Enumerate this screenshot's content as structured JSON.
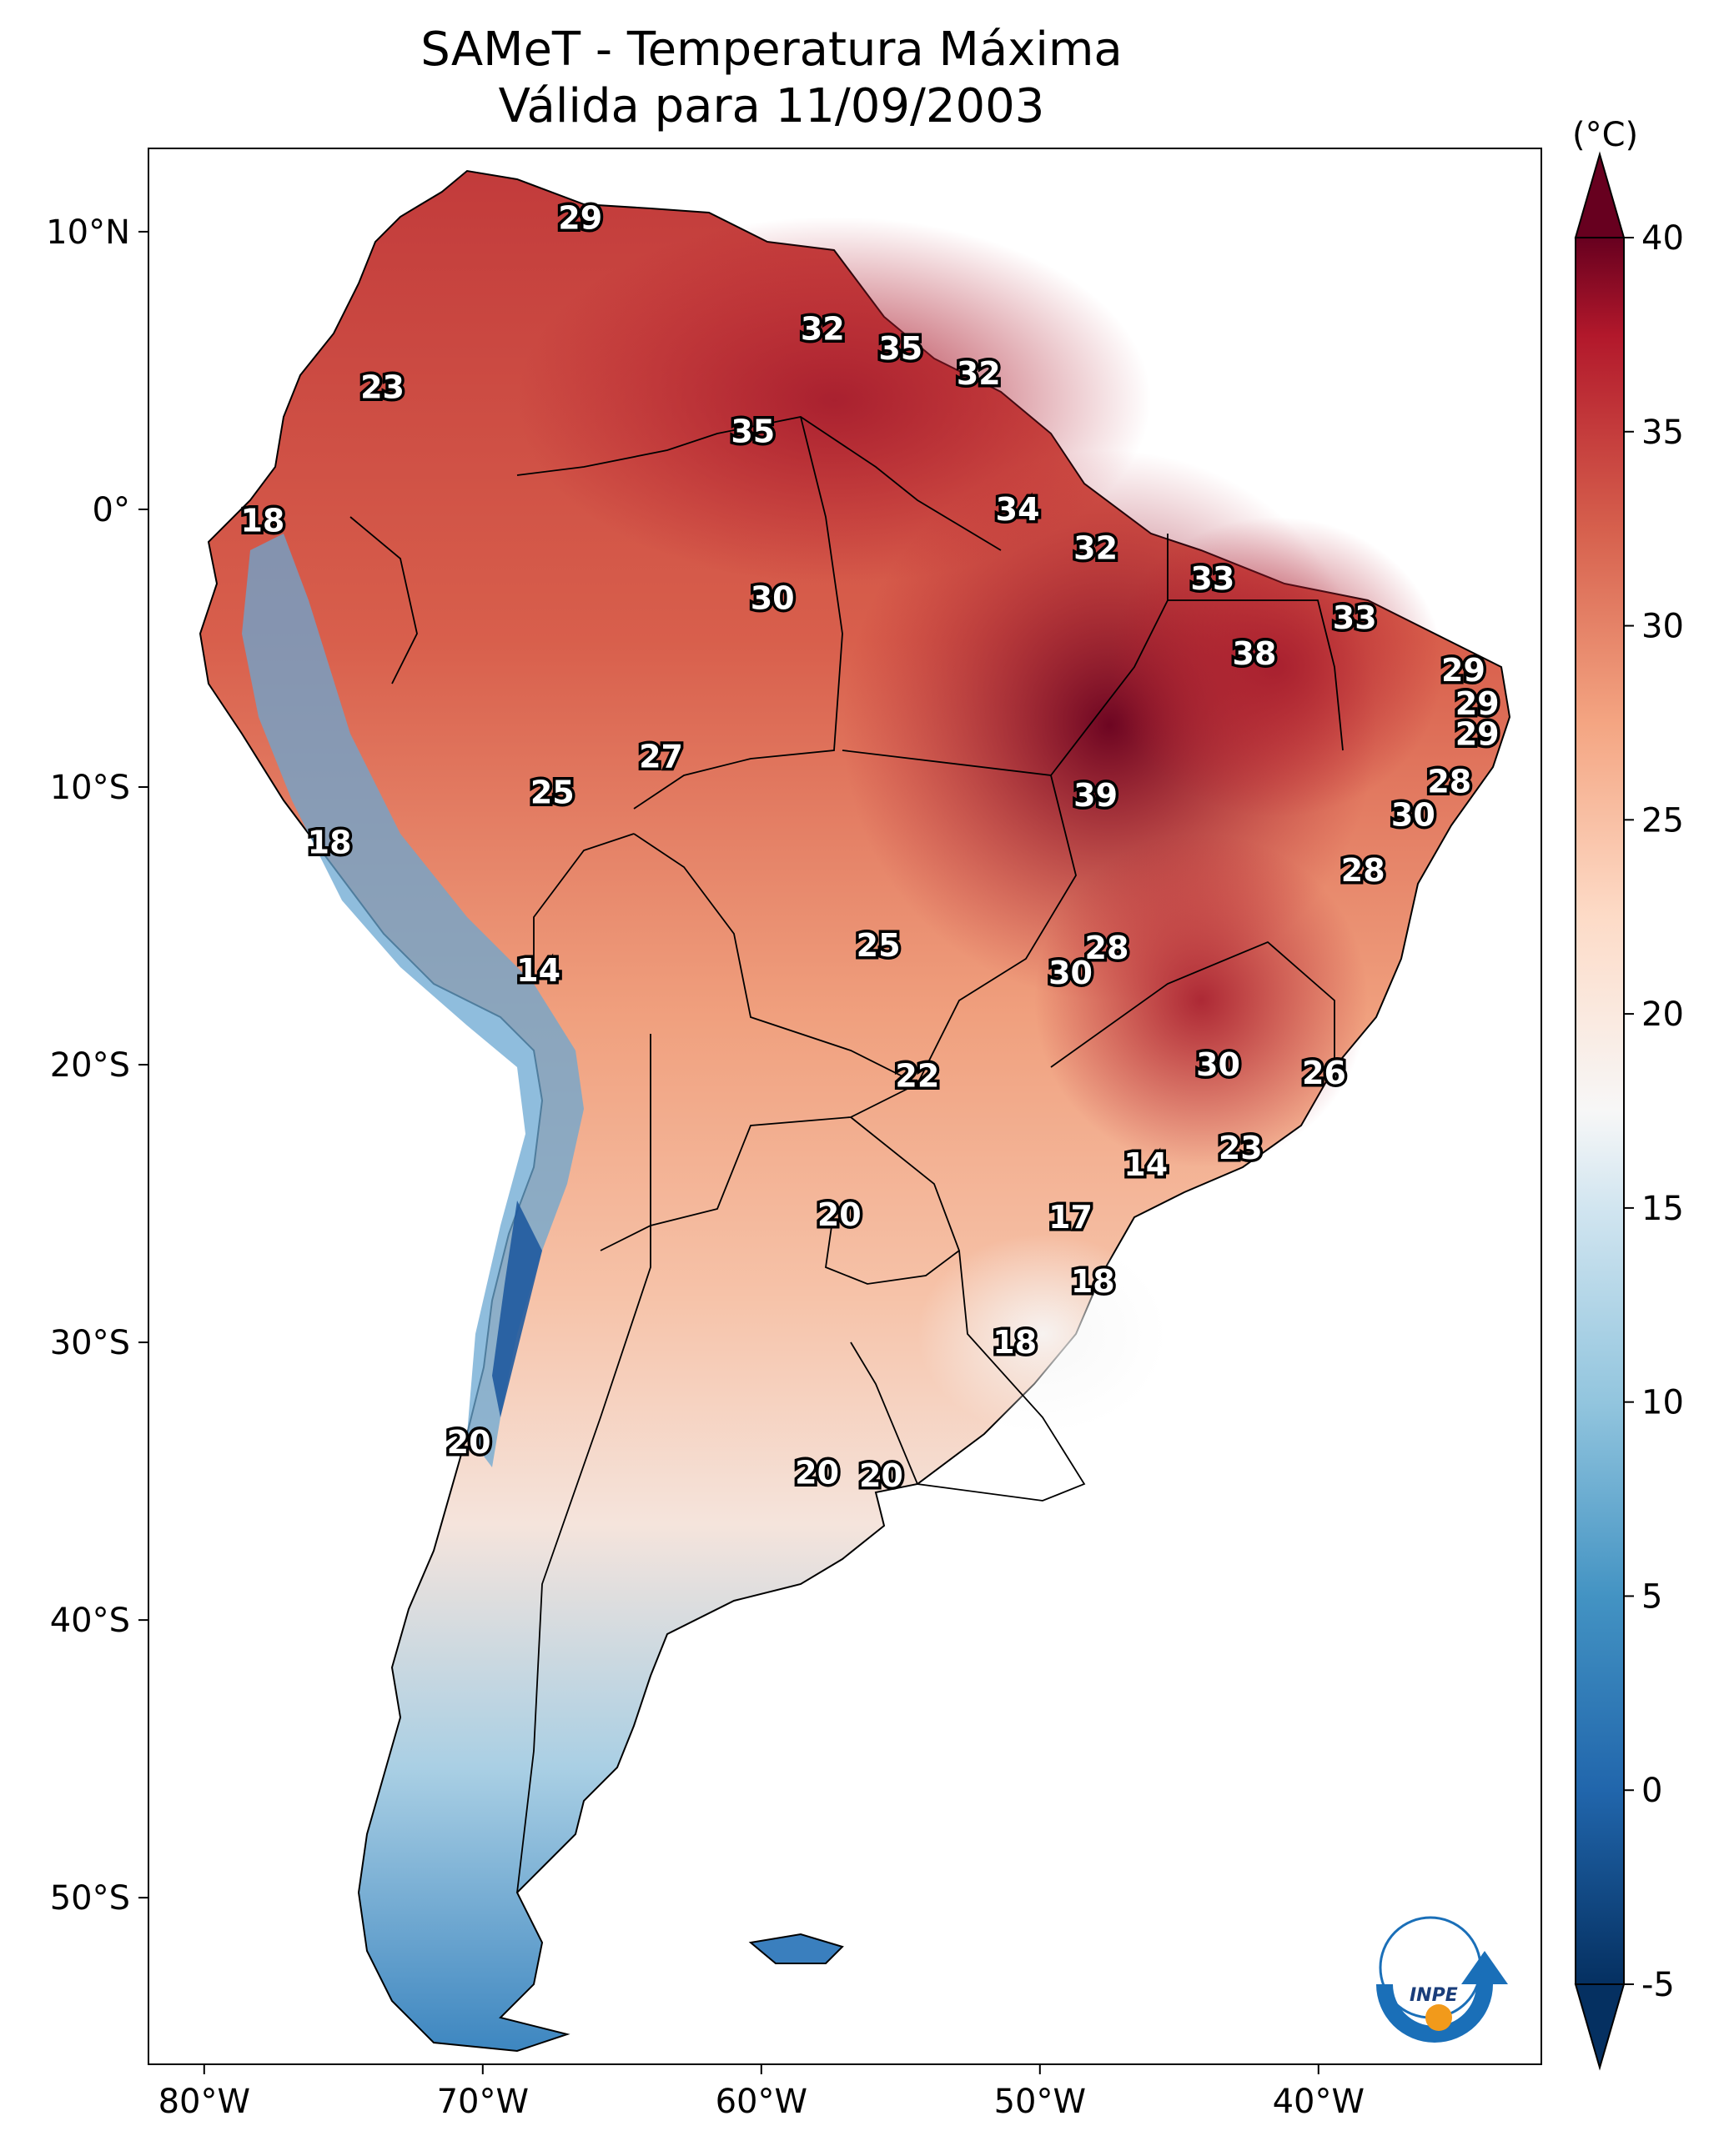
{
  "title": {
    "line1": "SAMeT - Temperatura Máxima",
    "line2": "Válida para 11/09/2003"
  },
  "map": {
    "lon_range": [
      -82,
      -32
    ],
    "lat_range": [
      -56,
      13
    ],
    "x_ticks": [
      {
        "lon": -80,
        "label": "80°W"
      },
      {
        "lon": -70,
        "label": "70°W"
      },
      {
        "lon": -60,
        "label": "60°W"
      },
      {
        "lon": -50,
        "label": "50°W"
      },
      {
        "lon": -40,
        "label": "40°W"
      }
    ],
    "y_ticks": [
      {
        "lat": 10,
        "label": "10°N"
      },
      {
        "lat": 0,
        "label": "0°"
      },
      {
        "lat": -10,
        "label": "10°S"
      },
      {
        "lat": -20,
        "label": "20°S"
      },
      {
        "lat": -30,
        "label": "30°S"
      },
      {
        "lat": -40,
        "label": "40°S"
      },
      {
        "lat": -50,
        "label": "50°S"
      }
    ]
  },
  "colorbar": {
    "unit": "(°C)",
    "min": -5,
    "max": 40,
    "ticks": [
      -5,
      0,
      5,
      10,
      15,
      20,
      25,
      30,
      35,
      40
    ],
    "colors": [
      "#053061",
      "#2166ac",
      "#4393c3",
      "#92c5de",
      "#d1e5f0",
      "#f7f7f7",
      "#fddbc7",
      "#f4a582",
      "#d6604d",
      "#b2182b",
      "#67001f"
    ]
  },
  "contour_labels": [
    {
      "value": "29",
      "lon": -66.5,
      "lat": 10.5
    },
    {
      "value": "32",
      "lon": -57.8,
      "lat": 6.5
    },
    {
      "value": "35",
      "lon": -55.0,
      "lat": 5.8
    },
    {
      "value": "32",
      "lon": -52.2,
      "lat": 4.9
    },
    {
      "value": "23",
      "lon": -73.6,
      "lat": 4.4
    },
    {
      "value": "35",
      "lon": -60.3,
      "lat": 2.8
    },
    {
      "value": "34",
      "lon": -50.8,
      "lat": 0.0
    },
    {
      "value": "18",
      "lon": -77.9,
      "lat": -0.4
    },
    {
      "value": "32",
      "lon": -48.0,
      "lat": -1.4
    },
    {
      "value": "33",
      "lon": -43.8,
      "lat": -2.5
    },
    {
      "value": "30",
      "lon": -59.6,
      "lat": -3.2
    },
    {
      "value": "33",
      "lon": -38.7,
      "lat": -3.9
    },
    {
      "value": "38",
      "lon": -42.3,
      "lat": -5.2
    },
    {
      "value": "29",
      "lon": -34.8,
      "lat": -5.8
    },
    {
      "value": "29",
      "lon": -34.3,
      "lat": -7.0
    },
    {
      "value": "29",
      "lon": -34.3,
      "lat": -8.1
    },
    {
      "value": "27",
      "lon": -63.6,
      "lat": -8.9
    },
    {
      "value": "28",
      "lon": -35.3,
      "lat": -9.8
    },
    {
      "value": "25",
      "lon": -67.5,
      "lat": -10.2
    },
    {
      "value": "39",
      "lon": -48.0,
      "lat": -10.3
    },
    {
      "value": "30",
      "lon": -36.6,
      "lat": -11.0
    },
    {
      "value": "28",
      "lon": -38.4,
      "lat": -13.0
    },
    {
      "value": "18",
      "lon": -75.5,
      "lat": -12.0
    },
    {
      "value": "25",
      "lon": -55.8,
      "lat": -15.7
    },
    {
      "value": "28",
      "lon": -47.6,
      "lat": -15.8
    },
    {
      "value": "14",
      "lon": -68.0,
      "lat": -16.6
    },
    {
      "value": "30",
      "lon": -48.9,
      "lat": -16.7
    },
    {
      "value": "30",
      "lon": -43.6,
      "lat": -20.0
    },
    {
      "value": "22",
      "lon": -54.4,
      "lat": -20.4
    },
    {
      "value": "26",
      "lon": -39.8,
      "lat": -20.3
    },
    {
      "value": "23",
      "lon": -42.8,
      "lat": -23.0
    },
    {
      "value": "14",
      "lon": -46.2,
      "lat": -23.6
    },
    {
      "value": "20",
      "lon": -57.2,
      "lat": -25.4
    },
    {
      "value": "17",
      "lon": -48.9,
      "lat": -25.5
    },
    {
      "value": "18",
      "lon": -48.1,
      "lat": -27.8
    },
    {
      "value": "18",
      "lon": -50.9,
      "lat": -30.0
    },
    {
      "value": "20",
      "lon": -70.5,
      "lat": -33.6
    },
    {
      "value": "20",
      "lon": -58.0,
      "lat": -34.7
    },
    {
      "value": "20",
      "lon": -55.7,
      "lat": -34.8
    }
  ],
  "logo": {
    "text": "INPE"
  }
}
